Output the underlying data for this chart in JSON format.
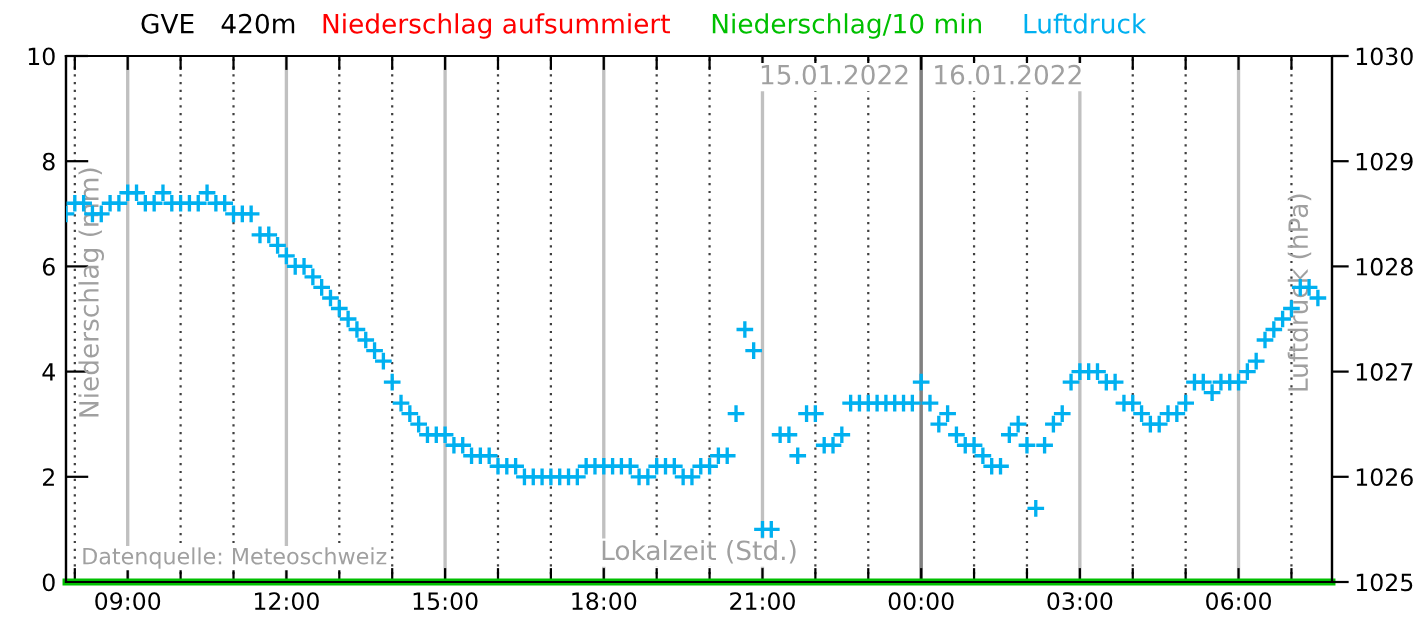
{
  "chart_data": {
    "type": "scatter",
    "title": "GVE   420m",
    "xlabel": "Lokalzeit (Std.)",
    "ylabel": "Niederschlag (mm)",
    "y2label": "Luftdruck (hPa)",
    "x": [
      "2022-01-15T07:50",
      "2022-01-15T08:00",
      "2022-01-15T08:10",
      "2022-01-15T08:20",
      "2022-01-15T08:30",
      "2022-01-15T08:40",
      "2022-01-15T08:50",
      "2022-01-15T09:00",
      "2022-01-15T09:10",
      "2022-01-15T09:20",
      "2022-01-15T09:30",
      "2022-01-15T09:40",
      "2022-01-15T09:50",
      "2022-01-15T10:00",
      "2022-01-15T10:10",
      "2022-01-15T10:20",
      "2022-01-15T10:30",
      "2022-01-15T10:40",
      "2022-01-15T10:50",
      "2022-01-15T11:00",
      "2022-01-15T11:10",
      "2022-01-15T11:20",
      "2022-01-15T11:30",
      "2022-01-15T11:40",
      "2022-01-15T11:50",
      "2022-01-15T12:00",
      "2022-01-15T12:10",
      "2022-01-15T12:20",
      "2022-01-15T12:30",
      "2022-01-15T12:40",
      "2022-01-15T12:50",
      "2022-01-15T13:00",
      "2022-01-15T13:10",
      "2022-01-15T13:20",
      "2022-01-15T13:30",
      "2022-01-15T13:40",
      "2022-01-15T13:50",
      "2022-01-15T14:00",
      "2022-01-15T14:10",
      "2022-01-15T14:20",
      "2022-01-15T14:30",
      "2022-01-15T14:40",
      "2022-01-15T14:50",
      "2022-01-15T15:00",
      "2022-01-15T15:10",
      "2022-01-15T15:20",
      "2022-01-15T15:30",
      "2022-01-15T15:40",
      "2022-01-15T15:50",
      "2022-01-15T16:00",
      "2022-01-15T16:10",
      "2022-01-15T16:20",
      "2022-01-15T16:30",
      "2022-01-15T16:40",
      "2022-01-15T16:50",
      "2022-01-15T17:00",
      "2022-01-15T17:10",
      "2022-01-15T17:20",
      "2022-01-15T17:30",
      "2022-01-15T17:40",
      "2022-01-15T17:50",
      "2022-01-15T18:00",
      "2022-01-15T18:10",
      "2022-01-15T18:20",
      "2022-01-15T18:30",
      "2022-01-15T18:40",
      "2022-01-15T18:50",
      "2022-01-15T19:00",
      "2022-01-15T19:10",
      "2022-01-15T19:20",
      "2022-01-15T19:30",
      "2022-01-15T19:40",
      "2022-01-15T19:50",
      "2022-01-15T20:00",
      "2022-01-15T20:10",
      "2022-01-15T20:20",
      "2022-01-15T20:30",
      "2022-01-15T20:40",
      "2022-01-15T20:50",
      "2022-01-15T21:00",
      "2022-01-15T21:10",
      "2022-01-15T21:20",
      "2022-01-15T21:30",
      "2022-01-15T21:40",
      "2022-01-15T21:50",
      "2022-01-15T22:00",
      "2022-01-15T22:10",
      "2022-01-15T22:20",
      "2022-01-15T22:30",
      "2022-01-15T22:40",
      "2022-01-15T22:50",
      "2022-01-15T23:00",
      "2022-01-15T23:10",
      "2022-01-15T23:20",
      "2022-01-15T23:30",
      "2022-01-15T23:40",
      "2022-01-15T23:50",
      "2022-01-16T00:00",
      "2022-01-16T00:10",
      "2022-01-16T00:20",
      "2022-01-16T00:30",
      "2022-01-16T00:40",
      "2022-01-16T00:50",
      "2022-01-16T01:00",
      "2022-01-16T01:10",
      "2022-01-16T01:20",
      "2022-01-16T01:30",
      "2022-01-16T01:40",
      "2022-01-16T01:50",
      "2022-01-16T02:00",
      "2022-01-16T02:10",
      "2022-01-16T02:20",
      "2022-01-16T02:30",
      "2022-01-16T02:40",
      "2022-01-16T02:50",
      "2022-01-16T03:00",
      "2022-01-16T03:10",
      "2022-01-16T03:20",
      "2022-01-16T03:30",
      "2022-01-16T03:40",
      "2022-01-16T03:50",
      "2022-01-16T04:00",
      "2022-01-16T04:10",
      "2022-01-16T04:20",
      "2022-01-16T04:30",
      "2022-01-16T04:40",
      "2022-01-16T04:50",
      "2022-01-16T05:00",
      "2022-01-16T05:10",
      "2022-01-16T05:20",
      "2022-01-16T05:30",
      "2022-01-16T05:40",
      "2022-01-16T05:50",
      "2022-01-16T06:00",
      "2022-01-16T06:10",
      "2022-01-16T06:20",
      "2022-01-16T06:30",
      "2022-01-16T06:40",
      "2022-01-16T06:50",
      "2022-01-16T07:00",
      "2022-01-16T07:10",
      "2022-01-16T07:20",
      "2022-01-16T07:30"
    ],
    "series": [
      {
        "name": "Niederschlag aufsummiert",
        "type": "line",
        "color": "#ff0000",
        "values": [
          null,
          null,
          null,
          null,
          null,
          null,
          null,
          null,
          null,
          null,
          null,
          null,
          null,
          null,
          null,
          null,
          null,
          null,
          null,
          null,
          null,
          null,
          null,
          null,
          null,
          null,
          null,
          null,
          null,
          null,
          null,
          null,
          null,
          null,
          null,
          null,
          null,
          null,
          null,
          null,
          null,
          null,
          null,
          null,
          null,
          null,
          null,
          null,
          null,
          null,
          null,
          null,
          null,
          null,
          null,
          null,
          null,
          null,
          null,
          null,
          null,
          null,
          null,
          null,
          null,
          null,
          null,
          null,
          null,
          null,
          null,
          null,
          null,
          null,
          null,
          null,
          null,
          null,
          null,
          null,
          null,
          null,
          null,
          null,
          null,
          null,
          null,
          null,
          null,
          null,
          null,
          null,
          null,
          null,
          null,
          null,
          null,
          null,
          null,
          null,
          null,
          null,
          null,
          null,
          null,
          null,
          null,
          null,
          null,
          null,
          null,
          null,
          null,
          null,
          null,
          null,
          null,
          null,
          null,
          null,
          null,
          null,
          null,
          null,
          null,
          null,
          null,
          null,
          null,
          null,
          null,
          null,
          null,
          null,
          null,
          null,
          null,
          null,
          null,
          null,
          null,
          null,
          null
        ]
      },
      {
        "name": "Niederschlag/10 min",
        "type": "line",
        "color": "#00c000",
        "x": [
          "2022-01-15T07:50",
          "2022-01-16T07:46"
        ],
        "values": [
          0,
          0
        ]
      },
      {
        "name": "Luftdruck",
        "axis": "y2",
        "color": "#00b0f0",
        "marker": "cross",
        "values": [
          1028.5,
          1028.6,
          1028.6,
          1028.5,
          1028.5,
          1028.6,
          1028.6,
          1028.7,
          1028.7,
          1028.6,
          1028.6,
          1028.7,
          1028.6,
          1028.6,
          1028.6,
          1028.6,
          1028.7,
          1028.6,
          1028.6,
          1028.5,
          1028.5,
          1028.5,
          1028.3,
          1028.3,
          1028.2,
          1028.1,
          1028.0,
          1028.0,
          1027.9,
          1027.8,
          1027.7,
          1027.6,
          1027.5,
          1027.4,
          1027.3,
          1027.2,
          1027.1,
          1026.9,
          1026.7,
          1026.6,
          1026.5,
          1026.4,
          1026.4,
          1026.4,
          1026.3,
          1026.3,
          1026.2,
          1026.2,
          1026.2,
          1026.1,
          1026.1,
          1026.1,
          1026.0,
          1026.0,
          1026.0,
          1026.0,
          1026.0,
          1026.0,
          1026.0,
          1026.1,
          1026.1,
          1026.1,
          1026.1,
          1026.1,
          1026.1,
          1026.0,
          1026.0,
          1026.1,
          1026.1,
          1026.1,
          1026.0,
          1026.0,
          1026.1,
          1026.1,
          1026.2,
          1026.2,
          1026.6,
          1027.4,
          1027.2,
          1025.5,
          1025.5,
          1026.4,
          1026.4,
          1026.2,
          1026.6,
          1026.6,
          1026.3,
          1026.3,
          1026.4,
          1026.7,
          1026.7,
          1026.7,
          1026.7,
          1026.7,
          1026.7,
          1026.7,
          1026.7,
          1026.9,
          1026.7,
          1026.5,
          1026.6,
          1026.4,
          1026.3,
          1026.3,
          1026.2,
          1026.1,
          1026.1,
          1026.4,
          1026.5,
          1026.3,
          1025.7,
          1026.3,
          1026.5,
          1026.6,
          1026.9,
          1027.0,
          1027.0,
          1027.0,
          1026.9,
          1026.9,
          1026.7,
          1026.7,
          1026.6,
          1026.5,
          1026.5,
          1026.6,
          1026.6,
          1026.7,
          1026.9,
          1026.9,
          1026.8,
          1026.9,
          1026.9,
          1026.9,
          1027.0,
          1027.1,
          1027.3,
          1027.4,
          1027.5,
          1027.6,
          1027.8,
          1027.8,
          1027.7
        ]
      }
    ],
    "xlim": [
      "2022-01-15T07:50",
      "2022-01-16T07:46"
    ],
    "xticks": [
      {
        "value": "2022-01-15T08:00",
        "label": null
      },
      {
        "value": "2022-01-15T09:00",
        "label": "09:00"
      },
      {
        "value": "2022-01-15T10:00",
        "label": null
      },
      {
        "value": "2022-01-15T11:00",
        "label": null
      },
      {
        "value": "2022-01-15T12:00",
        "label": "12:00"
      },
      {
        "value": "2022-01-15T13:00",
        "label": null
      },
      {
        "value": "2022-01-15T14:00",
        "label": null
      },
      {
        "value": "2022-01-15T15:00",
        "label": "15:00"
      },
      {
        "value": "2022-01-15T16:00",
        "label": null
      },
      {
        "value": "2022-01-15T17:00",
        "label": null
      },
      {
        "value": "2022-01-15T18:00",
        "label": "18:00"
      },
      {
        "value": "2022-01-15T19:00",
        "label": null
      },
      {
        "value": "2022-01-15T20:00",
        "label": null
      },
      {
        "value": "2022-01-15T21:00",
        "label": "21:00"
      },
      {
        "value": "2022-01-15T22:00",
        "label": null
      },
      {
        "value": "2022-01-15T23:00",
        "label": null
      },
      {
        "value": "2022-01-16T00:00",
        "label": "00:00"
      },
      {
        "value": "2022-01-16T01:00",
        "label": null
      },
      {
        "value": "2022-01-16T02:00",
        "label": null
      },
      {
        "value": "2022-01-16T03:00",
        "label": "03:00"
      },
      {
        "value": "2022-01-16T04:00",
        "label": null
      },
      {
        "value": "2022-01-16T05:00",
        "label": null
      },
      {
        "value": "2022-01-16T06:00",
        "label": "06:00"
      },
      {
        "value": "2022-01-16T07:00",
        "label": null
      }
    ],
    "ylim": [
      0,
      10
    ],
    "yticks": [
      0,
      2,
      4,
      6,
      8,
      10
    ],
    "y2lim": [
      1025,
      1030
    ],
    "y2ticks": [
      1025,
      1026,
      1027,
      1028,
      1029,
      1030
    ],
    "ref_lines": [
      {
        "axis": "x",
        "value": "2022-01-16T00:00",
        "color": "#808080"
      }
    ],
    "annotations": [
      {
        "text": "15.01.2022",
        "x": "2022-01-16T00:00",
        "y": 9.6
      },
      {
        "text": "16.01.2022",
        "x": "2022-01-16T00:00",
        "y": 9.6
      },
      "Datenquelle: Meteoschweiz"
    ],
    "grid": "x",
    "legend": "top"
  }
}
